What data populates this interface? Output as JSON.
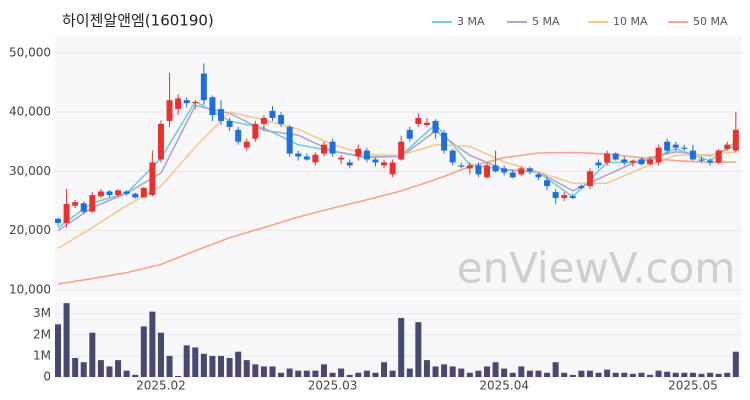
{
  "chart_data": {
    "type": "candlestick",
    "title": "하이젠알앤엠(160190)",
    "watermark": "enViewV.com",
    "categories": [
      null,
      null,
      null,
      null,
      null,
      null,
      null,
      null,
      null,
      null,
      null,
      null,
      "2025.02",
      null,
      null,
      null,
      null,
      null,
      null,
      null,
      null,
      null,
      null,
      null,
      null,
      null,
      null,
      null,
      null,
      null,
      null,
      null,
      "2025.03",
      null,
      null,
      null,
      null,
      null,
      null,
      null,
      null,
      null,
      null,
      null,
      null,
      null,
      null,
      null,
      null,
      null,
      null,
      null,
      "2025.04",
      null,
      null,
      null,
      null,
      null,
      null,
      null,
      null,
      null,
      null,
      null,
      null,
      null,
      null,
      null,
      null,
      null,
      null,
      null,
      null,
      null,
      "2025.05",
      null,
      null,
      null,
      null,
      null
    ],
    "open": [
      22000,
      21300,
      24200,
      24600,
      23200,
      25800,
      26600,
      26000,
      26600,
      26200,
      25600,
      26000,
      32000,
      38500,
      40500,
      42000,
      41500,
      46500,
      42500,
      40500,
      38500,
      37000,
      34000,
      35500,
      38000,
      40200,
      39500,
      37500,
      33000,
      32500,
      31500,
      33000,
      35000,
      32000,
      31500,
      32500,
      33500,
      32000,
      31000,
      29500,
      32000,
      37000,
      38000,
      37800,
      38500,
      36500,
      33500,
      31000,
      30500,
      31000,
      29000,
      31000,
      30500,
      29800,
      29500,
      30500,
      29500,
      28500,
      26500,
      25500,
      25800,
      27500,
      27500,
      31500,
      31500,
      33000,
      32000,
      31500,
      32000,
      31200,
      31500,
      35000,
      34500,
      34000,
      33500,
      32000,
      31800,
      31500,
      33800,
      33500
    ],
    "high": [
      22200,
      27000,
      25200,
      24900,
      26500,
      27000,
      26800,
      27000,
      26800,
      26400,
      27400,
      33500,
      38600,
      46600,
      43000,
      42500,
      42000,
      48200,
      42800,
      42000,
      39000,
      37500,
      35500,
      38500,
      39500,
      41000,
      40000,
      37800,
      33500,
      33000,
      33200,
      35000,
      35500,
      32800,
      32000,
      34500,
      34000,
      32300,
      32000,
      32000,
      36000,
      37500,
      39800,
      39000,
      38800,
      37000,
      33800,
      31500,
      31500,
      31500,
      31500,
      33500,
      31000,
      30200,
      30800,
      30800,
      29800,
      29000,
      27000,
      26500,
      26200,
      27800,
      30500,
      32000,
      33500,
      33200,
      32500,
      32000,
      32300,
      32500,
      34500,
      35500,
      35000,
      34500,
      34500,
      32500,
      32200,
      33800,
      35000,
      40000
    ],
    "low": [
      20800,
      20500,
      23800,
      22800,
      23000,
      25500,
      25600,
      25700,
      25900,
      25400,
      25600,
      25800,
      31500,
      37500,
      39500,
      40800,
      40500,
      41200,
      38500,
      37800,
      36800,
      34500,
      33500,
      35000,
      37000,
      38500,
      37500,
      32500,
      31800,
      31800,
      31000,
      32500,
      32500,
      31200,
      30500,
      31800,
      31500,
      30800,
      30500,
      29000,
      31800,
      35000,
      37500,
      37500,
      35500,
      33000,
      31000,
      30500,
      29500,
      29000,
      28800,
      29800,
      29300,
      28800,
      29200,
      29500,
      28500,
      26800,
      24500,
      25000,
      25300,
      27000,
      27000,
      30500,
      31000,
      31800,
      31000,
      30800,
      31000,
      31000,
      31000,
      33000,
      33500,
      33500,
      31800,
      31500,
      31000,
      31200,
      33500,
      33200
    ],
    "close": [
      21300,
      24500,
      24800,
      23200,
      26000,
      26600,
      26000,
      26800,
      26200,
      25600,
      27200,
      31500,
      38000,
      42000,
      42300,
      41500,
      41700,
      42000,
      39500,
      38500,
      37500,
      35000,
      35000,
      38000,
      39000,
      39000,
      38000,
      33000,
      32500,
      32000,
      32800,
      34500,
      33000,
      32300,
      31000,
      33800,
      32000,
      31500,
      31500,
      31500,
      35000,
      35500,
      39000,
      38200,
      36500,
      33500,
      31500,
      30800,
      31000,
      29500,
      31000,
      30000,
      29800,
      29000,
      30500,
      30000,
      29000,
      27500,
      25500,
      26000,
      25500,
      27200,
      30000,
      31000,
      33000,
      32000,
      31500,
      31800,
      31200,
      32000,
      34000,
      33500,
      34000,
      33800,
      32000,
      31800,
      31500,
      33500,
      34500,
      37000
    ],
    "up_color": "#e8322d",
    "down_color": "#1e6fd9",
    "ylim": [
      8800,
      53000
    ],
    "yticks": [
      {
        "value": 10000,
        "label": "10,000"
      },
      {
        "value": 20000,
        "label": "20,000"
      },
      {
        "value": 30000,
        "label": "30,000"
      },
      {
        "value": 40000,
        "label": "40,000"
      },
      {
        "value": 50000,
        "label": "50,000"
      }
    ],
    "grid": true,
    "ma_series": [
      {
        "name": "3 MA",
        "color": "#73d0d0",
        "x": [
          0,
          4,
          8,
          12,
          16,
          20,
          24,
          28,
          32,
          36,
          40,
          44,
          48,
          52,
          56,
          60,
          64,
          68,
          72,
          76,
          79
        ],
        "values": [
          20500,
          24700,
          26300,
          32200,
          41800,
          38500,
          37300,
          34500,
          33400,
          32300,
          32700,
          37900,
          31100,
          30300,
          29800,
          25700,
          31500,
          31500,
          33800,
          31800,
          35000
        ]
      },
      {
        "name": "5 MA",
        "color": "#b3a3d3",
        "x": [
          0,
          4,
          8,
          12,
          16,
          20,
          24,
          28,
          32,
          36,
          40,
          44,
          48,
          52,
          56,
          60,
          64,
          68,
          72,
          76,
          79
        ],
        "values": [
          20000,
          23900,
          26300,
          29700,
          41100,
          39800,
          36900,
          36100,
          33400,
          32400,
          32500,
          36800,
          32700,
          30300,
          29900,
          26700,
          29400,
          32000,
          33300,
          32600,
          34300
        ]
      },
      {
        "name": "10 MA",
        "color": "#f4ca92",
        "x": [
          0,
          4,
          8,
          12,
          16,
          20,
          24,
          28,
          32,
          36,
          40,
          44,
          48,
          52,
          56,
          60,
          64,
          68,
          72,
          76,
          79
        ],
        "values": [
          17000,
          20500,
          24200,
          27500,
          34100,
          40000,
          38700,
          37100,
          34500,
          32800,
          32700,
          34500,
          34200,
          31600,
          29900,
          28000,
          28000,
          30500,
          32700,
          32800,
          33300
        ]
      },
      {
        "name": "50 MA",
        "color": "#f5a48e",
        "x": [
          0,
          4,
          8,
          12,
          16,
          20,
          24,
          28,
          32,
          36,
          40,
          44,
          48,
          52,
          56,
          60,
          64,
          68,
          72,
          76,
          79
        ],
        "values": [
          11000,
          11900,
          12900,
          14300,
          16600,
          18800,
          20500,
          22300,
          23800,
          25200,
          26700,
          28600,
          30800,
          32300,
          33100,
          33200,
          32900,
          32300,
          31800,
          31500,
          31600
        ]
      }
    ],
    "volume": {
      "type": "bar",
      "color": "#484870",
      "values": [
        2500000,
        3500000,
        900000,
        700000,
        2100000,
        800000,
        500000,
        800000,
        300000,
        100000,
        2400000,
        3100000,
        2100000,
        1000000,
        50000,
        1500000,
        1400000,
        1100000,
        1000000,
        1000000,
        900000,
        1200000,
        800000,
        600000,
        500000,
        500000,
        200000,
        400000,
        300000,
        300000,
        300000,
        600000,
        200000,
        400000,
        100000,
        200000,
        300000,
        200000,
        700000,
        300000,
        2800000,
        400000,
        2600000,
        800000,
        500000,
        600000,
        500000,
        400000,
        200000,
        300000,
        500000,
        700000,
        400000,
        200000,
        500000,
        300000,
        300000,
        200000,
        700000,
        200000,
        100000,
        300000,
        300000,
        200000,
        350000,
        200000,
        200000,
        150000,
        200000,
        100000,
        300000,
        250000,
        200000,
        200000,
        200000,
        150000,
        200000,
        150000,
        200000,
        1200000
      ],
      "ylim": [
        0,
        3650000
      ],
      "yticks": [
        0,
        {
          "value": 1000000,
          "label": "1M"
        },
        {
          "value": 2000000,
          "label": "2M"
        },
        {
          "value": 3000000,
          "label": "3M"
        }
      ]
    }
  }
}
